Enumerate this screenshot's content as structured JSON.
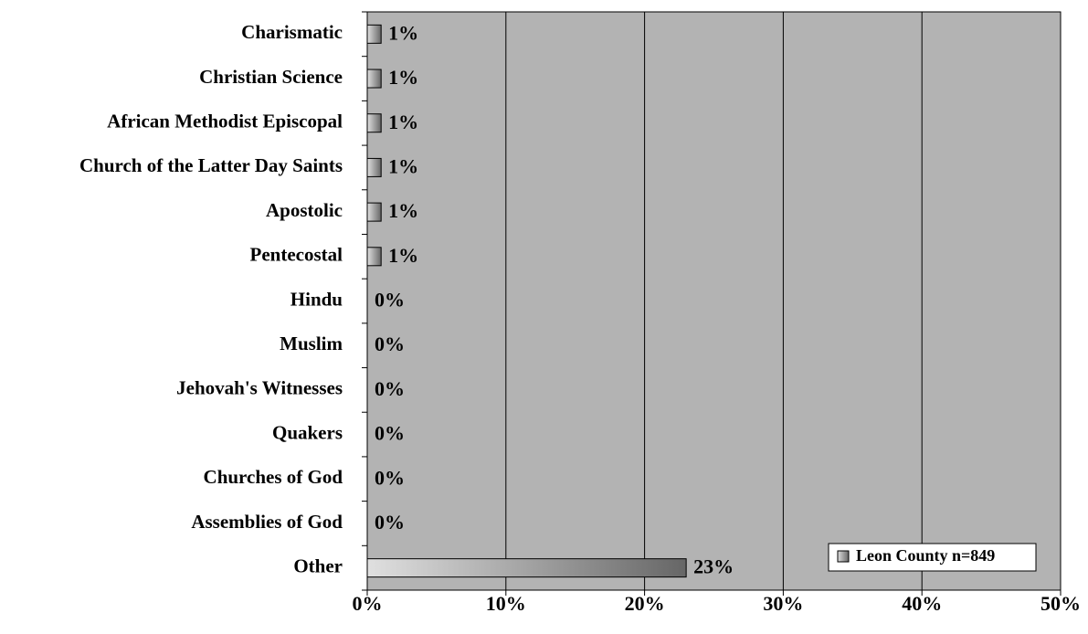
{
  "chart_data": {
    "type": "bar",
    "orientation": "horizontal",
    "categories": [
      "Charismatic",
      "Christian Science",
      "African Methodist Episcopal",
      "Church of the Latter Day Saints",
      "Apostolic",
      "Pentecostal",
      "Hindu",
      "Muslim",
      "Jehovah's Witnesses",
      "Quakers",
      "Churches of God",
      "Assemblies of God",
      "Other"
    ],
    "series": [
      {
        "name": "Leon County n=849",
        "color": "#666666",
        "values": [
          1,
          1,
          1,
          1,
          1,
          1,
          0,
          0,
          0,
          0,
          0,
          0,
          23
        ],
        "value_labels": [
          "1%",
          "1%",
          "1%",
          "1%",
          "1%",
          "1%",
          "0%",
          "0%",
          "0%",
          "0%",
          "0%",
          "0%",
          "23%"
        ]
      }
    ],
    "xlim": [
      0,
      50
    ],
    "xticks": [
      {
        "value": 0,
        "label": "0%"
      },
      {
        "value": 10,
        "label": "10%"
      },
      {
        "value": 20,
        "label": "20%"
      },
      {
        "value": 30,
        "label": "30%"
      },
      {
        "value": 40,
        "label": "40%"
      },
      {
        "value": 50,
        "label": "50%"
      }
    ],
    "grid": true,
    "legend": "lower right"
  }
}
